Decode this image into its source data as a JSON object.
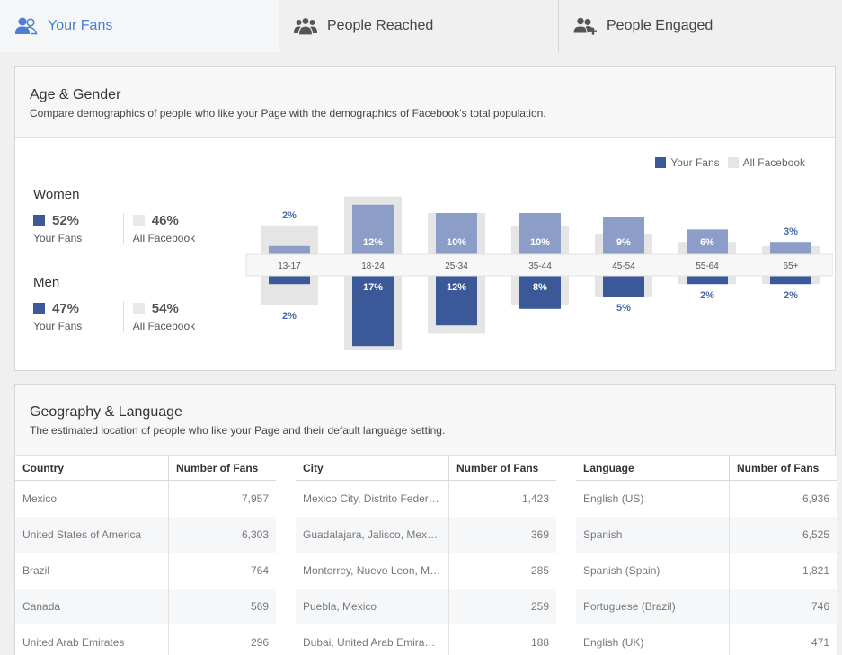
{
  "tabs": [
    {
      "label": "Your Fans",
      "icon": "fans-icon",
      "active": true
    },
    {
      "label": "People Reached",
      "icon": "people-reached-icon",
      "active": false
    },
    {
      "label": "People Engaged",
      "icon": "people-engaged-icon",
      "active": false
    }
  ],
  "colors": {
    "accent": "#4a7fd4",
    "fans": "#3b5998",
    "fans_light": "#8c9dc8",
    "all_facebook": "#e5e5e5"
  },
  "age_gender": {
    "title": "Age & Gender",
    "subtitle": "Compare demographics of people who like your Page with the demographics of Facebook's total population.",
    "legend": {
      "fans": "Your Fans",
      "all": "All Facebook"
    },
    "women": {
      "title": "Women",
      "fans_pct": "52%",
      "fans_label": "Your Fans",
      "all_pct": "46%",
      "all_label": "All Facebook"
    },
    "men": {
      "title": "Men",
      "fans_pct": "47%",
      "fans_label": "Your Fans",
      "all_pct": "54%",
      "all_label": "All Facebook"
    }
  },
  "chart_data": {
    "type": "bar",
    "categories": [
      "13-17",
      "18-24",
      "25-34",
      "35-44",
      "45-54",
      "55-64",
      "65+"
    ],
    "series": [
      {
        "name": "Women — Your Fans",
        "values": [
          2,
          12,
          10,
          10,
          9,
          6,
          3
        ],
        "labels": [
          "2%",
          "12%",
          "10%",
          "10%",
          "9%",
          "6%",
          "3%"
        ]
      },
      {
        "name": "Men — Your Fans",
        "values": [
          2,
          17,
          12,
          8,
          5,
          2,
          2
        ],
        "labels": [
          "2%",
          "17%",
          "12%",
          "8%",
          "5%",
          "2%",
          "2%"
        ]
      },
      {
        "name": "Women — All Facebook",
        "values": [
          7,
          14,
          10,
          7,
          5,
          3,
          2
        ]
      },
      {
        "name": "Men — All Facebook",
        "values": [
          7,
          18,
          14,
          7,
          5,
          2,
          2
        ]
      }
    ]
  },
  "geography": {
    "title": "Geography & Language",
    "subtitle": "The estimated location of people who like your Page and their default language setting.",
    "countries": {
      "headers": [
        "Country",
        "Number of Fans"
      ],
      "rows": [
        [
          "Mexico",
          "7,957"
        ],
        [
          "United States of America",
          "6,303"
        ],
        [
          "Brazil",
          "764"
        ],
        [
          "Canada",
          "569"
        ],
        [
          "United Arab Emirates",
          "296"
        ]
      ]
    },
    "cities": {
      "headers": [
        "City",
        "Number of Fans"
      ],
      "rows": [
        [
          "Mexico City, Distrito Feder…",
          "1,423"
        ],
        [
          "Guadalajara, Jalisco, Mex…",
          "369"
        ],
        [
          "Monterrey, Nuevo Leon, M…",
          "285"
        ],
        [
          "Puebla, Mexico",
          "259"
        ],
        [
          "Dubai, United Arab Emira…",
          "188"
        ]
      ]
    },
    "languages": {
      "headers": [
        "Language",
        "Number of Fans"
      ],
      "rows": [
        [
          "English (US)",
          "6,936"
        ],
        [
          "Spanish",
          "6,525"
        ],
        [
          "Spanish (Spain)",
          "1,821"
        ],
        [
          "Portuguese (Brazil)",
          "746"
        ],
        [
          "English (UK)",
          "471"
        ]
      ]
    }
  }
}
